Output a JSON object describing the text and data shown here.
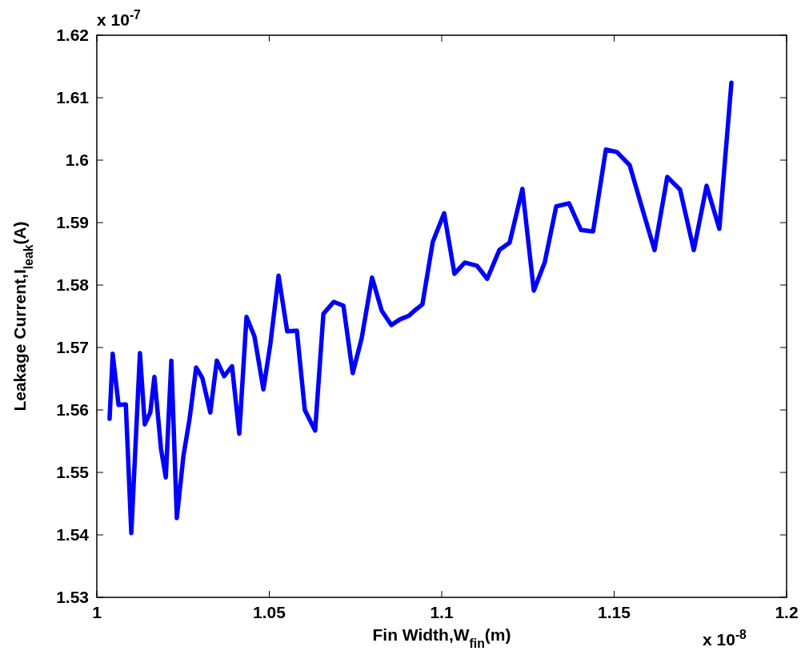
{
  "chart_data": {
    "type": "line",
    "xlabel": "Fin Width,W$_{fin}$(m)",
    "ylabel": "Leakage Current,I$_{leak}$(A)",
    "annotations": [
      "x 10$^{-7}$",
      "x 10$^{-8}$"
    ],
    "x": [
      1.0037,
      1.0046,
      1.0063,
      1.0084,
      1.01,
      1.0125,
      1.0139,
      1.0155,
      1.0167,
      1.0186,
      1.02,
      1.0216,
      1.0232,
      1.0251,
      1.0269,
      1.0288,
      1.0306,
      1.0329,
      1.0348,
      1.0369,
      1.0392,
      1.0413,
      1.0434,
      1.0457,
      1.0483,
      1.0503,
      1.0527,
      1.0552,
      1.058,
      1.0603,
      1.0633,
      1.0657,
      1.0687,
      1.0715,
      1.0742,
      1.0768,
      1.0798,
      1.0826,
      1.0854,
      1.0879,
      1.0905,
      1.0921,
      1.0944,
      1.0974,
      1.1007,
      1.1037,
      1.1067,
      1.1102,
      1.1132,
      1.1167,
      1.1197,
      1.1234,
      1.1267,
      1.1299,
      1.1332,
      1.1369,
      1.1404,
      1.1439,
      1.1476,
      1.1508,
      1.1545,
      1.1578,
      1.1617,
      1.1654,
      1.1691,
      1.1731,
      1.1768,
      1.1805,
      1.184
    ],
    "series": [
      {
        "color": "#0000ff",
        "values": [
          1.5586,
          1.569,
          1.5608,
          1.5609,
          1.5403,
          1.5691,
          1.5577,
          1.5596,
          1.5653,
          1.5538,
          1.5492,
          1.5679,
          1.5427,
          1.5526,
          1.5586,
          1.5668,
          1.5651,
          1.5596,
          1.5679,
          1.5654,
          1.567,
          1.5562,
          1.5749,
          1.5718,
          1.5633,
          1.5705,
          1.5815,
          1.5726,
          1.5727,
          1.56,
          1.5567,
          1.5754,
          1.5773,
          1.5767,
          1.5659,
          1.5715,
          1.5812,
          1.5759,
          1.5736,
          1.5745,
          1.5751,
          1.5759,
          1.5769,
          1.5869,
          1.5915,
          1.5818,
          1.5836,
          1.5831,
          1.581,
          1.5856,
          1.5868,
          1.5954,
          1.5791,
          1.5837,
          1.5926,
          1.5931,
          1.5888,
          1.5886,
          1.6017,
          1.6013,
          1.5992,
          1.5929,
          1.5856,
          1.5973,
          1.5953,
          1.5856,
          1.5959,
          1.589,
          1.6124
        ]
      }
    ],
    "xlim": [
      1,
      1.2
    ],
    "xticks": [
      1,
      1.05,
      1.1,
      1.15,
      1.2
    ],
    "ylim": [
      1.53,
      1.62
    ],
    "yticks": [
      1.53,
      1.54,
      1.55,
      1.56,
      1.57,
      1.58,
      1.59,
      1.6,
      1.61,
      1.62
    ],
    "grid": false,
    "line_style": "solid"
  }
}
